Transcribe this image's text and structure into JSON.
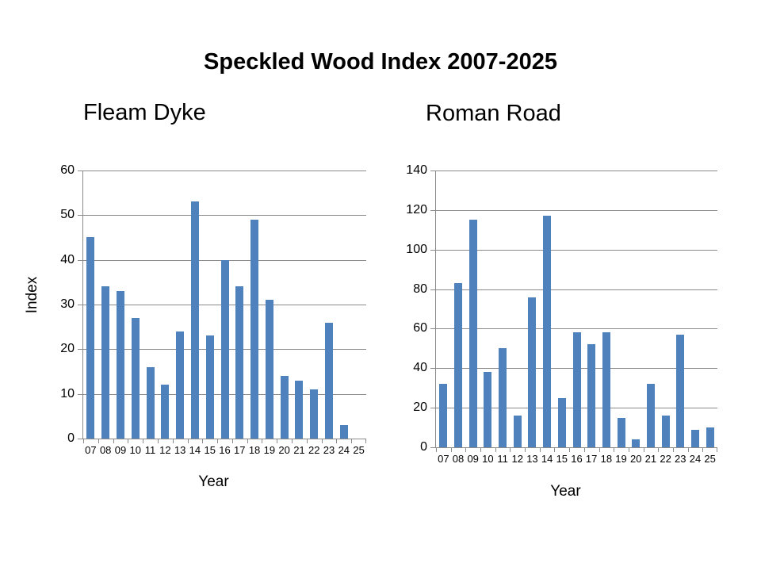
{
  "page": {
    "title": "Speckled Wood Index 2007-2025"
  },
  "colors": {
    "bar": "#4F81BD",
    "gridline": "#8A8A8A",
    "axis": "#8A8A8A",
    "text": "#000000",
    "background": "#FFFFFF"
  },
  "chart_data": [
    {
      "type": "bar",
      "title": "Fleam Dyke",
      "xlabel": "Year",
      "ylabel": "Index",
      "categories": [
        "07",
        "08",
        "09",
        "10",
        "11",
        "12",
        "13",
        "14",
        "15",
        "16",
        "17",
        "18",
        "19",
        "20",
        "21",
        "22",
        "23",
        "24",
        "25"
      ],
      "values": [
        45,
        34,
        33,
        27,
        16,
        12,
        24,
        53,
        23,
        40,
        34,
        49,
        31,
        14,
        13,
        11,
        26,
        3,
        0
      ],
      "ylim": [
        0,
        60
      ],
      "ytick": 10,
      "grid": true,
      "legend": false
    },
    {
      "type": "bar",
      "title": "Roman Road",
      "xlabel": "Year",
      "ylabel": "",
      "categories": [
        "07",
        "08",
        "09",
        "10",
        "11",
        "12",
        "13",
        "14",
        "15",
        "16",
        "17",
        "18",
        "19",
        "20",
        "21",
        "22",
        "23",
        "24",
        "25"
      ],
      "values": [
        32,
        83,
        115,
        38,
        50,
        16,
        76,
        117,
        25,
        58,
        52,
        58,
        15,
        4,
        32,
        16,
        57,
        9,
        10
      ],
      "ylim": [
        0,
        140
      ],
      "ytick": 20,
      "grid": true,
      "legend": false
    }
  ]
}
